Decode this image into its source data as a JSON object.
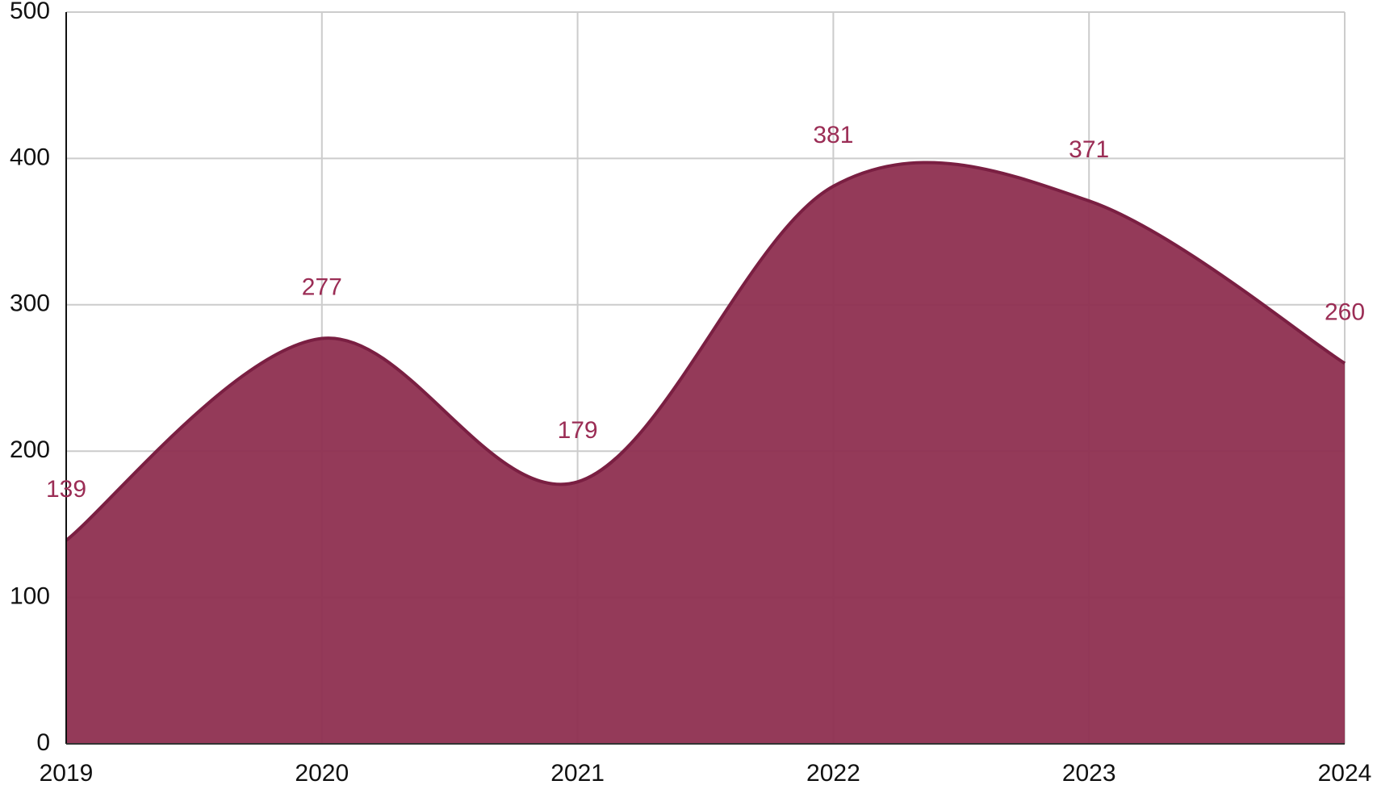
{
  "chart_data": {
    "type": "area",
    "x": [
      2019,
      2020,
      2021,
      2022,
      2023,
      2024
    ],
    "values": [
      139,
      277,
      179,
      381,
      371,
      260
    ],
    "color": "#8e2f50",
    "xlim": [
      2019,
      2024
    ],
    "xticks": [
      2019,
      2020,
      2021,
      2022,
      2023,
      2024
    ],
    "ylim": [
      0,
      500
    ],
    "yticks": [
      0,
      100,
      200,
      300,
      400,
      500
    ],
    "grid": true
  }
}
